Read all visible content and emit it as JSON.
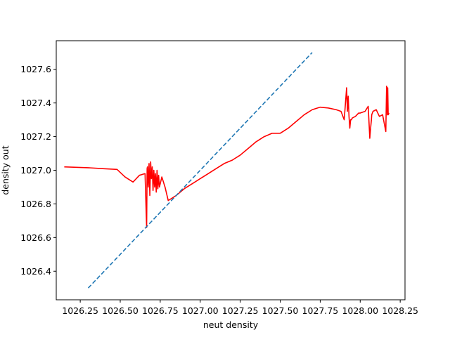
{
  "chart_data": {
    "type": "line",
    "title": "",
    "xlabel": "neut density",
    "ylabel": "density out",
    "xlim": [
      1026.1,
      1028.28
    ],
    "ylim": [
      1026.23,
      1027.77
    ],
    "xticks": [
      1026.25,
      1026.5,
      1026.75,
      1027.0,
      1027.25,
      1027.5,
      1027.75,
      1028.0,
      1028.25
    ],
    "xtick_labels": [
      "1026.25",
      "1026.50",
      "1026.75",
      "1027.00",
      "1027.25",
      "1027.50",
      "1027.75",
      "1028.00",
      "1028.25"
    ],
    "yticks": [
      1026.4,
      1026.6,
      1026.8,
      1027.0,
      1027.2,
      1027.4,
      1027.6
    ],
    "ytick_labels": [
      "1026.4",
      "1026.6",
      "1026.8",
      "1027.0",
      "1027.2",
      "1027.4",
      "1027.6"
    ],
    "grid": false,
    "series": [
      {
        "style": "solid",
        "color": "#ff0000",
        "x": [
          1026.15,
          1026.3,
          1026.38,
          1026.48,
          1026.53,
          1026.58,
          1026.62,
          1026.655,
          1026.665,
          1026.668,
          1026.67,
          1026.675,
          1026.68,
          1026.685,
          1026.69,
          1026.695,
          1026.7,
          1026.705,
          1026.71,
          1026.715,
          1026.72,
          1026.725,
          1026.73,
          1026.735,
          1026.74,
          1026.745,
          1026.76,
          1026.78,
          1026.8,
          1026.85,
          1026.9,
          1026.95,
          1027.0,
          1027.05,
          1027.1,
          1027.15,
          1027.2,
          1027.25,
          1027.3,
          1027.35,
          1027.4,
          1027.45,
          1027.5,
          1027.55,
          1027.6,
          1027.65,
          1027.7,
          1027.75,
          1027.8,
          1027.85,
          1027.88,
          1027.9,
          1027.915,
          1027.92,
          1027.925,
          1027.93,
          1027.935,
          1027.94,
          1027.945,
          1027.95,
          1027.97,
          1027.99,
          1028.0,
          1028.03,
          1028.05,
          1028.06,
          1028.065,
          1028.07,
          1028.072,
          1028.08,
          1028.1,
          1028.12,
          1028.14,
          1028.16,
          1028.165,
          1028.17,
          1028.172,
          1028.175,
          1028.18
        ],
        "y": [
          1027.02,
          1027.015,
          1027.01,
          1027.005,
          1026.96,
          1026.93,
          1026.97,
          1026.98,
          1026.66,
          1027.01,
          1027.02,
          1026.9,
          1027.04,
          1026.85,
          1027.05,
          1026.95,
          1027.02,
          1026.88,
          1027.0,
          1026.9,
          1026.98,
          1026.87,
          1027.0,
          1026.89,
          1026.97,
          1026.9,
          1026.96,
          1026.9,
          1026.82,
          1026.85,
          1026.89,
          1026.92,
          1026.95,
          1026.98,
          1027.01,
          1027.04,
          1027.06,
          1027.09,
          1027.13,
          1027.17,
          1027.2,
          1027.22,
          1027.22,
          1027.25,
          1027.29,
          1027.33,
          1027.36,
          1027.375,
          1027.37,
          1027.36,
          1027.35,
          1027.3,
          1027.49,
          1027.35,
          1027.44,
          1027.32,
          1027.25,
          1027.3,
          1027.3,
          1027.31,
          1027.32,
          1027.34,
          1027.34,
          1027.35,
          1027.38,
          1027.19,
          1027.25,
          1027.3,
          1027.33,
          1027.35,
          1027.36,
          1027.32,
          1027.33,
          1027.23,
          1027.5,
          1027.33,
          1027.49,
          1027.33,
          1027.34
        ]
      },
      {
        "style": "dashed",
        "color": "#1f77b4",
        "x": [
          1026.3,
          1027.7
        ],
        "y": [
          1026.3,
          1027.7
        ]
      }
    ]
  }
}
